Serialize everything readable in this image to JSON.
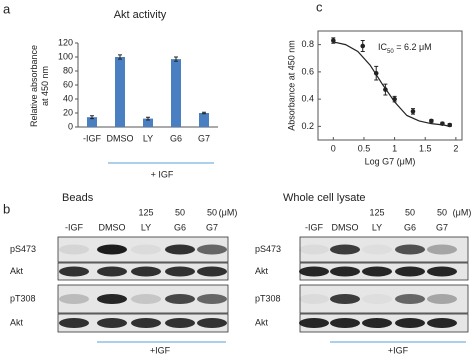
{
  "panel_labels": [
    "a",
    "b",
    "c"
  ],
  "chart_data": [
    {
      "type": "bar",
      "title": "Akt activity",
      "y_label": [
        "Relative absorbance",
        "at 450 nm"
      ],
      "categories": [
        "-IGF",
        "DMSO",
        "LY",
        "G6",
        "G7"
      ],
      "values": [
        14,
        100,
        12,
        97,
        20
      ],
      "errors": [
        2,
        3,
        2,
        3,
        1
      ],
      "color": "#4a7fc1",
      "ylim": [
        0,
        120
      ],
      "yticks": [
        0,
        20,
        40,
        60,
        80,
        100,
        120
      ],
      "annotation": "+ IGF"
    },
    {
      "type": "line",
      "x_label": "Log G7 (μM)",
      "y_label": "Absorbance at 450 nm",
      "x": [
        0,
        0.48,
        0.7,
        0.85,
        1.0,
        1.3,
        1.6,
        1.78,
        1.9
      ],
      "values": [
        0.83,
        0.79,
        0.59,
        0.47,
        0.4,
        0.31,
        0.24,
        0.22,
        0.21
      ],
      "errors": [
        0.02,
        0.04,
        0.05,
        0.04,
        0.02,
        0.02,
        0.01,
        0.01,
        0.01
      ],
      "fit": {
        "x": [
          0,
          0.2,
          0.4,
          0.6,
          0.8,
          1.0,
          1.2,
          1.4,
          1.6,
          1.8,
          1.9
        ],
        "values": [
          0.82,
          0.8,
          0.75,
          0.65,
          0.51,
          0.38,
          0.28,
          0.24,
          0.22,
          0.21,
          0.2
        ]
      },
      "color": "#222222",
      "xlim": [
        -0.25,
        2.1
      ],
      "xticks": [
        0,
        0.5,
        1,
        1.5,
        2
      ],
      "ylim": [
        0.1,
        0.9
      ],
      "yticks": [
        0.2,
        0.4,
        0.6,
        0.8
      ],
      "annotation": {
        "main": "IC",
        "sub": "50",
        "rest": " = 6.2 μM"
      }
    }
  ],
  "blots": [
    {
      "title": "Beads",
      "doses": [
        "125",
        "50",
        "50"
      ],
      "unit": "(μM)",
      "lanes": [
        "-IGF",
        "DMSO",
        "LY",
        "G6",
        "G7"
      ],
      "rows": [
        "pS473",
        "Akt",
        "pT308",
        "Akt"
      ],
      "treatment": "+IGF"
    },
    {
      "title": "Whole cell lysate",
      "doses": [
        "125",
        "50",
        "50"
      ],
      "unit": "(μM)",
      "lanes": [
        "-IGF",
        "DMSO",
        "LY",
        "G6",
        "G7"
      ],
      "rows": [
        "pS473",
        "Akt",
        "pT308",
        "Akt"
      ],
      "treatment": "+IGF"
    }
  ]
}
